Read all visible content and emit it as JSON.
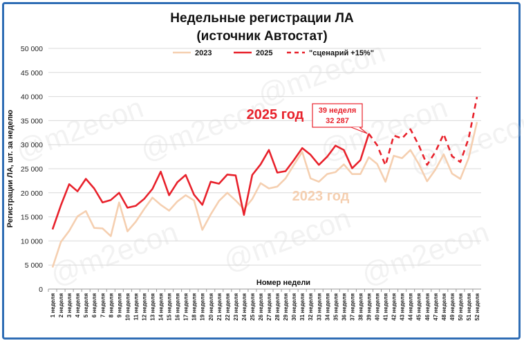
{
  "chart_data": {
    "type": "line",
    "title_line1": "Недельные регистрации ЛА",
    "title_line2": "(источник Автостат)",
    "xlabel": "Номер недели",
    "ylabel": "Регистрации ЛА, шт. за неделю",
    "ylim": [
      0,
      50000
    ],
    "y_ticks": [
      "0",
      "5 000",
      "10 000",
      "15 000",
      "20 000",
      "25 000",
      "30 000",
      "35 000",
      "40 000",
      "45 000",
      "50 000"
    ],
    "categories": [
      "1 неделя",
      "2 неделя",
      "3 неделя",
      "4 неделя",
      "5 неделя",
      "6 неделя",
      "7 неделя",
      "8 неделя",
      "9 неделя",
      "10 неделя",
      "11 неделя",
      "12 неделя",
      "13 неделя",
      "14 неделя",
      "15 неделя",
      "16 неделя",
      "17 неделя",
      "18 неделя",
      "19 неделя",
      "20 неделя",
      "21 неделя",
      "22 неделя",
      "23 неделя",
      "24 неделя",
      "25 неделя",
      "26 неделя",
      "27 неделя",
      "28 неделя",
      "29 неделя",
      "30 неделя",
      "31 неделя",
      "32 неделя",
      "33 неделя",
      "34 неделя",
      "35 неделя",
      "36 неделя",
      "37 неделя",
      "38 неделя",
      "39 неделя",
      "40 неделя",
      "41 неделя",
      "42 неделя",
      "43 неделя",
      "44 неделя",
      "45 неделя",
      "46 неделя",
      "47 неделя",
      "48 неделя",
      "49 неделя",
      "50 неделя",
      "51 неделя",
      "52 неделя"
    ],
    "series": [
      {
        "name": "2023",
        "color": "#f5cfb0",
        "dash": false,
        "values": [
          4500,
          9800,
          12100,
          15100,
          16200,
          12700,
          12600,
          11000,
          18000,
          12000,
          14000,
          16600,
          19000,
          17500,
          16300,
          18200,
          19500,
          18400,
          12300,
          15500,
          18300,
          20000,
          18400,
          16600,
          18700,
          22000,
          20900,
          21300,
          23000,
          25800,
          28500,
          23000,
          22300,
          23900,
          24300,
          25900,
          23900,
          23900,
          27400,
          26000,
          22300,
          27700,
          27200,
          28900,
          26000,
          22400,
          24800,
          28000,
          24000,
          22900,
          27200,
          34700
        ]
      },
      {
        "name": "2025",
        "color": "#e8212b",
        "dash": false,
        "values": [
          12400,
          17400,
          21800,
          20300,
          22900,
          20900,
          18000,
          18500,
          20000,
          16900,
          17300,
          18700,
          20800,
          24400,
          19500,
          22200,
          23700,
          19600,
          17500,
          22300,
          21900,
          23800,
          23600,
          15400,
          23700,
          25900,
          28900,
          24200,
          24500,
          26800,
          29300,
          27900,
          25800,
          27500,
          29800,
          28900,
          25100,
          26800,
          32287,
          null,
          null,
          null,
          null,
          null,
          null,
          null,
          null,
          null,
          null,
          null,
          null,
          null
        ]
      },
      {
        "name": "\"сценарий +15%\"",
        "color": "#e8212b",
        "dash": true,
        "values": [
          null,
          null,
          null,
          null,
          null,
          null,
          null,
          null,
          null,
          null,
          null,
          null,
          null,
          null,
          null,
          null,
          null,
          null,
          null,
          null,
          null,
          null,
          null,
          null,
          null,
          null,
          null,
          null,
          null,
          null,
          null,
          null,
          null,
          null,
          null,
          null,
          null,
          null,
          32287,
          29900,
          25700,
          31900,
          31300,
          33200,
          29900,
          25800,
          28500,
          32200,
          27600,
          26400,
          31300,
          39900
        ]
      }
    ],
    "annotations": {
      "label_2025": "2025 год",
      "label_2023": "2023 год",
      "callout_line1": "39 неделя",
      "callout_line2": "32 287"
    },
    "watermark": "@m2econ",
    "legend_position": "top"
  }
}
